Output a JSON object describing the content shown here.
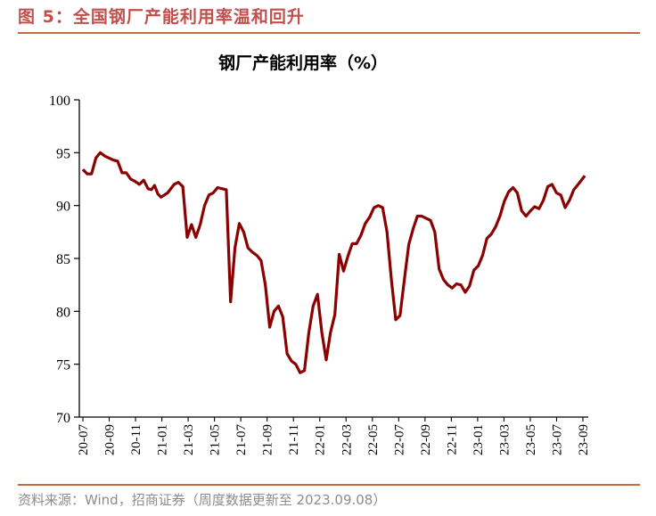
{
  "figure": {
    "title": "图 5：全国钢厂产能利用率温和回升",
    "source": "资料来源：Wind，招商证券（周度数据更新至 2023.09.08）",
    "accent_color": "#c0504d",
    "rule_color": "#c56a3f"
  },
  "chart_data": {
    "type": "line",
    "title": "钢厂产能利用率（%）",
    "xlabel": "",
    "ylabel": "",
    "ylim": [
      70,
      100
    ],
    "yticks": [
      70,
      75,
      80,
      85,
      90,
      95,
      100
    ],
    "xticks": [
      "20-07",
      "20-09",
      "20-11",
      "21-01",
      "21-03",
      "21-05",
      "21-07",
      "21-09",
      "21-11",
      "22-01",
      "22-03",
      "22-05",
      "22-07",
      "22-09",
      "22-11",
      "23-01",
      "23-03",
      "23-05",
      "23-07",
      "23-09"
    ],
    "grid": false,
    "legend": "none",
    "line_color": "#8b0000",
    "series": [
      {
        "points": [
          [
            "20-07",
            93.4
          ],
          [
            "20-07",
            93.0
          ],
          [
            "20-07",
            93.0
          ],
          [
            "20-08",
            94.5
          ],
          [
            "20-08",
            95.0
          ],
          [
            "20-08",
            94.7
          ],
          [
            "20-09",
            94.5
          ],
          [
            "20-09",
            94.3
          ],
          [
            "20-09",
            94.2
          ],
          [
            "20-10",
            93.1
          ],
          [
            "20-10",
            93.1
          ],
          [
            "20-10",
            92.5
          ],
          [
            "20-11",
            92.3
          ],
          [
            "20-11",
            92.0
          ],
          [
            "20-11",
            92.4
          ],
          [
            "20-12",
            91.6
          ],
          [
            "20-12",
            91.5
          ],
          [
            "20-12",
            91.9
          ],
          [
            "20-12",
            91.1
          ],
          [
            "21-01",
            90.8
          ],
          [
            "21-01",
            91.2
          ],
          [
            "21-02",
            92.0
          ],
          [
            "21-02",
            92.2
          ],
          [
            "21-02",
            91.8
          ],
          [
            "21-03",
            87.0
          ],
          [
            "21-03",
            88.2
          ],
          [
            "21-03",
            87.0
          ],
          [
            "21-04",
            88.2
          ],
          [
            "21-04",
            90.0
          ],
          [
            "21-04",
            91.0
          ],
          [
            "21-05",
            91.2
          ],
          [
            "21-05",
            91.7
          ],
          [
            "21-05",
            91.6
          ],
          [
            "21-06",
            91.5
          ],
          [
            "21-06",
            80.9
          ],
          [
            "21-06",
            86.0
          ],
          [
            "21-07",
            88.3
          ],
          [
            "21-07",
            87.5
          ],
          [
            "21-07",
            86.0
          ],
          [
            "21-08",
            85.6
          ],
          [
            "21-08",
            85.3
          ],
          [
            "21-08",
            84.8
          ],
          [
            "21-09",
            82.5
          ],
          [
            "21-09",
            78.5
          ],
          [
            "21-09",
            80.0
          ],
          [
            "21-10",
            80.5
          ],
          [
            "21-10",
            79.5
          ],
          [
            "21-10",
            76.0
          ],
          [
            "21-11",
            75.3
          ],
          [
            "21-11",
            75.0
          ],
          [
            "21-11",
            74.2
          ],
          [
            "21-12",
            74.4
          ],
          [
            "21-12",
            78.0
          ],
          [
            "21-12",
            80.5
          ],
          [
            "22-01",
            81.6
          ],
          [
            "22-01",
            78.0
          ],
          [
            "22-01",
            75.4
          ],
          [
            "22-02",
            78.0
          ],
          [
            "22-02",
            79.7
          ],
          [
            "22-02",
            85.4
          ],
          [
            "22-03",
            83.8
          ],
          [
            "22-03",
            85.2
          ],
          [
            "22-03",
            86.4
          ],
          [
            "22-04",
            86.4
          ],
          [
            "22-04",
            87.2
          ],
          [
            "22-04",
            88.3
          ],
          [
            "22-05",
            88.9
          ],
          [
            "22-05",
            89.8
          ],
          [
            "22-05",
            90.0
          ],
          [
            "22-06",
            89.8
          ],
          [
            "22-06",
            87.5
          ],
          [
            "22-06",
            83.0
          ],
          [
            "22-07",
            79.2
          ],
          [
            "22-07",
            79.6
          ],
          [
            "22-07",
            83.0
          ],
          [
            "22-08",
            86.3
          ],
          [
            "22-08",
            87.8
          ],
          [
            "22-08",
            89.0
          ],
          [
            "22-09",
            89.0
          ],
          [
            "22-09",
            88.8
          ],
          [
            "22-09",
            88.6
          ],
          [
            "22-10",
            87.5
          ],
          [
            "22-10",
            84.0
          ],
          [
            "22-10",
            83.0
          ],
          [
            "22-11",
            82.5
          ],
          [
            "22-11",
            82.2
          ],
          [
            "22-11",
            82.6
          ],
          [
            "22-12",
            82.5
          ],
          [
            "22-12",
            81.8
          ],
          [
            "22-12",
            82.4
          ],
          [
            "23-01",
            83.9
          ],
          [
            "23-01",
            84.3
          ],
          [
            "23-01",
            85.3
          ],
          [
            "23-02",
            86.9
          ],
          [
            "23-02",
            87.3
          ],
          [
            "23-02",
            88.0
          ],
          [
            "23-03",
            89.0
          ],
          [
            "23-03",
            90.4
          ],
          [
            "23-03",
            91.3
          ],
          [
            "23-04",
            91.7
          ],
          [
            "23-04",
            91.2
          ],
          [
            "23-04",
            89.5
          ],
          [
            "23-05",
            89.0
          ],
          [
            "23-05",
            89.5
          ],
          [
            "23-05",
            89.9
          ],
          [
            "23-06",
            89.7
          ],
          [
            "23-06",
            90.5
          ],
          [
            "23-06",
            91.8
          ],
          [
            "23-07",
            92.0
          ],
          [
            "23-07",
            91.2
          ],
          [
            "23-07",
            91.0
          ],
          [
            "23-08",
            89.8
          ],
          [
            "23-08",
            90.5
          ],
          [
            "23-08",
            91.5
          ],
          [
            "23-09",
            92.0
          ],
          [
            "23-09",
            92.8
          ]
        ]
      }
    ]
  }
}
